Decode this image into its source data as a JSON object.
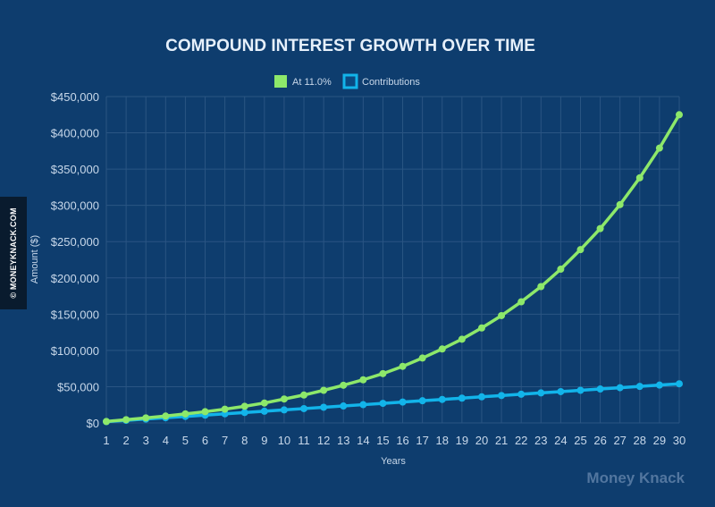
{
  "side_badge": "© MONEYKNACK.COM",
  "watermark": "Money Knack",
  "colors": {
    "background": "#0e3d6e",
    "grid": "#2a5583",
    "text": "#c8d8ea",
    "title": "#e6f0fb",
    "growth": "#8de86a",
    "contributions": "#12b4ea"
  },
  "chart_data": {
    "type": "line",
    "title": "COMPOUND INTEREST GROWTH OVER TIME",
    "xlabel": "Years",
    "ylabel": "Amount ($)",
    "x": [
      1,
      2,
      3,
      4,
      5,
      6,
      7,
      8,
      9,
      10,
      11,
      12,
      13,
      14,
      15,
      16,
      17,
      18,
      19,
      20,
      21,
      22,
      23,
      24,
      25,
      26,
      27,
      28,
      29,
      30
    ],
    "ylim": [
      0,
      450000
    ],
    "yticks": [
      "$0",
      "$50,000",
      "$100,000",
      "$150,000",
      "$200,000",
      "$250,000",
      "$300,000",
      "$350,000",
      "$400,000",
      "$450,000"
    ],
    "legend_position": "top-center",
    "grid": true,
    "series": [
      {
        "name": "At 11.0%",
        "color": "#8de86a",
        "values": [
          2000,
          4500,
          7000,
          9500,
          12500,
          15500,
          19000,
          23000,
          27500,
          33000,
          38500,
          45000,
          52000,
          59500,
          68000,
          78000,
          89500,
          102000,
          115500,
          131000,
          148000,
          167000,
          188000,
          212000,
          239000,
          268000,
          301000,
          338000,
          379000,
          425000
        ]
      },
      {
        "name": "Contributions",
        "color": "#12b4ea",
        "values": [
          1800,
          3600,
          5400,
          7200,
          9000,
          10800,
          12600,
          14400,
          16200,
          18000,
          19800,
          21600,
          23400,
          25200,
          27000,
          28800,
          30600,
          32400,
          34200,
          36000,
          37800,
          39600,
          41400,
          43200,
          45000,
          46800,
          48600,
          50400,
          52200,
          54000
        ]
      }
    ]
  }
}
